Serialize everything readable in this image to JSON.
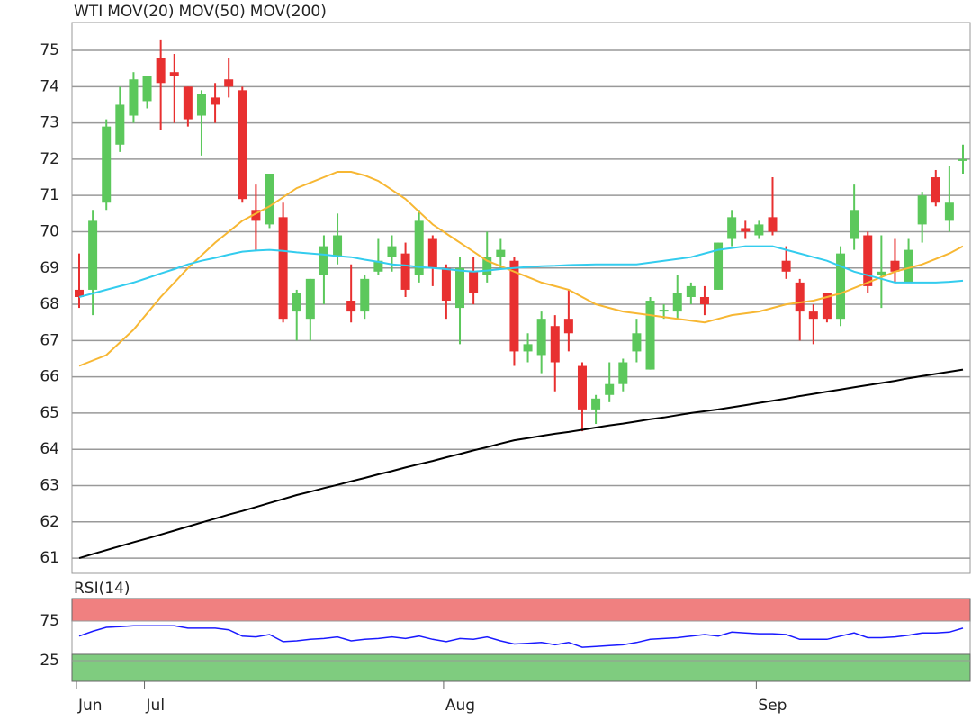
{
  "chart_data": [
    {
      "type": "candlestick",
      "name": "WTI",
      "color": "#e8432a",
      "up_color": "#5cc85c",
      "down_color": "#e83030",
      "categories": [
        "Jun",
        null,
        null,
        null,
        null,
        "Jul",
        null,
        null,
        null,
        null,
        null,
        null,
        null,
        null,
        null,
        null,
        null,
        null,
        null,
        null,
        null,
        null,
        null,
        null,
        null,
        null,
        null,
        "Aug",
        null,
        null,
        null,
        null,
        null,
        null,
        null,
        null,
        null,
        null,
        null,
        null,
        null,
        null,
        null,
        null,
        null,
        null,
        null,
        null,
        null,
        null,
        "Sep",
        null,
        null,
        null,
        null,
        null,
        null,
        null,
        null,
        null,
        null,
        null,
        null,
        null,
        null,
        null
      ],
      "open": [
        68.4,
        68.4,
        70.8,
        72.4,
        73.2,
        73.6,
        74.8,
        74.4,
        74.0,
        73.2,
        73.7,
        74.2,
        73.9,
        70.6,
        70.2,
        70.4,
        67.8,
        67.6,
        68.8,
        69.3,
        68.1,
        67.8,
        68.9,
        69.3,
        69.4,
        68.8,
        69.8,
        69.0,
        67.9,
        68.9,
        68.8,
        69.3,
        69.2,
        66.7,
        66.6,
        67.4,
        67.6,
        66.3,
        65.1,
        65.5,
        65.8,
        66.7,
        66.2,
        67.8,
        67.8,
        68.2,
        68.2,
        68.4,
        69.8,
        70.1,
        69.9,
        70.4,
        69.2,
        68.6,
        67.8,
        68.3,
        67.6,
        69.8,
        69.9,
        68.8,
        69.2,
        68.6,
        70.2,
        71.5,
        70.3,
        71.95
      ],
      "high": [
        69.4,
        70.6,
        73.1,
        74.0,
        74.4,
        74.3,
        75.3,
        74.9,
        74.0,
        73.9,
        74.1,
        74.8,
        74.0,
        71.3,
        71.6,
        70.8,
        68.4,
        68.7,
        69.9,
        70.5,
        69.1,
        68.8,
        69.8,
        69.9,
        69.7,
        70.6,
        69.9,
        69.1,
        69.3,
        69.3,
        70.0,
        69.8,
        69.3,
        67.2,
        67.8,
        67.7,
        68.4,
        66.4,
        65.5,
        66.4,
        66.5,
        67.6,
        68.2,
        68.0,
        68.8,
        68.6,
        68.5,
        69.7,
        70.6,
        70.3,
        70.3,
        71.5,
        69.6,
        68.7,
        68.0,
        68.3,
        69.6,
        71.3,
        70.0,
        69.9,
        69.8,
        69.8,
        71.1,
        71.7,
        71.8,
        72.4
      ],
      "low": [
        67.9,
        67.7,
        70.6,
        72.2,
        73.0,
        73.4,
        72.8,
        73.0,
        72.9,
        72.1,
        73.0,
        73.7,
        70.8,
        69.5,
        70.1,
        67.5,
        67.0,
        67.0,
        68.0,
        69.1,
        67.5,
        67.6,
        68.8,
        68.9,
        68.2,
        68.6,
        68.5,
        67.6,
        66.9,
        68.0,
        68.6,
        69.0,
        66.3,
        66.4,
        66.1,
        65.6,
        66.7,
        64.5,
        64.7,
        65.3,
        65.6,
        66.4,
        66.2,
        67.6,
        67.6,
        68.0,
        67.7,
        68.4,
        69.6,
        69.8,
        69.8,
        69.9,
        68.7,
        67.0,
        66.9,
        67.5,
        67.4,
        69.5,
        68.3,
        67.9,
        68.6,
        68.6,
        69.7,
        70.7,
        70.0,
        71.6
      ],
      "close": [
        68.2,
        70.3,
        72.9,
        73.5,
        74.2,
        74.3,
        74.1,
        74.3,
        73.1,
        73.8,
        73.5,
        74.0,
        70.9,
        70.3,
        71.6,
        67.6,
        68.3,
        68.7,
        69.6,
        69.9,
        67.8,
        68.7,
        69.2,
        69.6,
        68.4,
        70.3,
        69.0,
        68.1,
        69.0,
        68.3,
        69.3,
        69.5,
        66.7,
        66.9,
        67.6,
        66.4,
        67.2,
        65.1,
        65.4,
        65.8,
        66.4,
        67.2,
        68.1,
        67.85,
        68.3,
        68.5,
        68.0,
        69.7,
        70.4,
        70.0,
        70.2,
        70.0,
        68.9,
        67.8,
        67.6,
        67.6,
        69.4,
        70.6,
        68.5,
        68.9,
        68.9,
        69.5,
        71.0,
        70.8,
        70.8,
        72.0
      ],
      "series": [
        {
          "name": "MOV(20)",
          "color": "#f7b733",
          "values": [
            66.3,
            66.45,
            66.6,
            66.95,
            67.3,
            67.75,
            68.2,
            68.6,
            69.0,
            69.35,
            69.7,
            70.0,
            70.3,
            70.5,
            70.7,
            70.95,
            71.2,
            71.35,
            71.5,
            71.65,
            71.65,
            71.55,
            71.4,
            71.15,
            70.9,
            70.55,
            70.2,
            69.95,
            69.7,
            69.45,
            69.2,
            69.05,
            68.9,
            68.75,
            68.6,
            68.5,
            68.4,
            68.2,
            68.0,
            67.9,
            67.8,
            67.75,
            67.7,
            67.65,
            67.6,
            67.55,
            67.5,
            67.6,
            67.7,
            67.75,
            67.8,
            67.9,
            68.0,
            68.05,
            68.1,
            68.2,
            68.3,
            68.45,
            68.6,
            68.75,
            68.9,
            69.0,
            69.1,
            69.25,
            69.4,
            69.6
          ]
        },
        {
          "name": "MOV(50)",
          "color": "#33ccee",
          "values": [
            68.2,
            68.3,
            68.4,
            68.5,
            68.6,
            68.72,
            68.85,
            68.97,
            69.1,
            69.2,
            69.28,
            69.37,
            69.45,
            69.48,
            69.5,
            69.47,
            69.43,
            69.4,
            69.37,
            69.33,
            69.3,
            69.23,
            69.17,
            69.1,
            69.07,
            69.03,
            69.0,
            68.97,
            68.93,
            68.9,
            68.93,
            68.97,
            69.0,
            69.03,
            69.05,
            69.06,
            69.08,
            69.09,
            69.1,
            69.1,
            69.1,
            69.1,
            69.15,
            69.2,
            69.25,
            69.3,
            69.4,
            69.5,
            69.55,
            69.6,
            69.6,
            69.6,
            69.5,
            69.4,
            69.3,
            69.2,
            69.05,
            68.9,
            68.8,
            68.7,
            68.6,
            68.6,
            68.6,
            68.6,
            68.62,
            68.65
          ]
        },
        {
          "name": "MOV(200)",
          "color": "#000000",
          "values": [
            61.0,
            61.11,
            61.22,
            61.33,
            61.44,
            61.54,
            61.65,
            61.76,
            61.87,
            61.98,
            62.09,
            62.2,
            62.3,
            62.41,
            62.52,
            62.63,
            62.74,
            62.83,
            62.93,
            63.02,
            63.12,
            63.21,
            63.31,
            63.4,
            63.5,
            63.59,
            63.68,
            63.78,
            63.87,
            63.97,
            64.06,
            64.16,
            64.25,
            64.31,
            64.37,
            64.43,
            64.48,
            64.54,
            64.6,
            64.66,
            64.71,
            64.77,
            64.83,
            64.88,
            64.94,
            65.0,
            65.05,
            65.1,
            65.16,
            65.22,
            65.28,
            65.34,
            65.4,
            65.47,
            65.53,
            65.59,
            65.65,
            65.71,
            65.77,
            65.83,
            65.89,
            65.96,
            66.02,
            66.08,
            66.14,
            66.2
          ]
        }
      ],
      "ylim": [
        60.58,
        75.77
      ],
      "yticks": [
        61,
        62,
        63,
        64,
        65,
        66,
        67,
        68,
        69,
        70,
        71,
        72,
        73,
        74,
        75
      ],
      "grid": true
    },
    {
      "type": "line",
      "title": "RSI(14)",
      "color": "#1a1aff",
      "values": [
        56,
        62,
        67,
        68,
        69,
        69,
        69,
        69,
        66,
        66,
        66,
        64,
        56,
        55,
        58,
        49,
        50,
        52,
        53,
        55,
        50,
        52,
        53,
        55,
        53,
        56,
        52,
        49,
        53,
        52,
        55,
        50,
        46,
        47,
        48,
        45,
        48,
        42,
        43,
        44,
        45,
        48,
        52,
        53,
        54,
        56,
        58,
        56,
        61,
        60,
        59,
        59,
        58,
        52,
        52,
        52,
        56,
        60,
        54,
        54,
        55,
        57,
        60,
        60,
        61,
        66
      ],
      "zones": [
        {
          "from": 75,
          "to": 103.4,
          "color": "#f08080"
        },
        {
          "from": -1.1,
          "to": 33,
          "color": "#7fcc7f"
        }
      ],
      "ylim": [
        -1.1,
        103.4
      ],
      "yticks": [
        25,
        75
      ],
      "grid": true
    }
  ]
}
